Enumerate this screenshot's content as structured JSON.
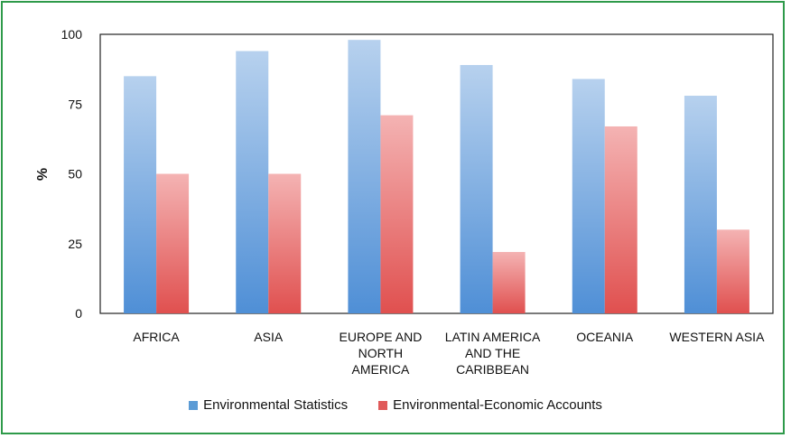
{
  "chart_data": {
    "type": "bar",
    "title": "",
    "xlabel": "",
    "ylabel": "%",
    "ylim": [
      0,
      100
    ],
    "yticks": [
      0,
      25,
      50,
      75,
      100
    ],
    "categories": [
      [
        "AFRICA"
      ],
      [
        "ASIA"
      ],
      [
        "EUROPE AND",
        "NORTH",
        "AMERICA"
      ],
      [
        "LATIN AMERICA",
        "AND THE",
        "CARIBBEAN"
      ],
      [
        "OCEANIA"
      ],
      [
        "WESTERN ASIA"
      ]
    ],
    "series": [
      {
        "name": "Environmental Statistics",
        "color": "#5b9bd5",
        "values": [
          85,
          94,
          98,
          89,
          84,
          78
        ]
      },
      {
        "name": "Environmental-Economic Accounts",
        "color": "#e05a5a",
        "values": [
          50,
          50,
          71,
          22,
          67,
          30
        ]
      }
    ],
    "legend": "bottom",
    "grid": false
  }
}
